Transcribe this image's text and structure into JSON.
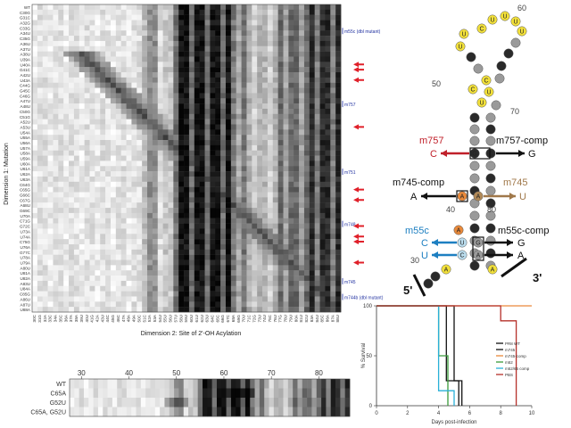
{
  "heatmap": {
    "ylabel": "Dimension 1: Mutation",
    "xlabel": "Dimension 2: Site of 2'-OH Acylation",
    "rows": [
      "WT",
      "C30G",
      "G31C",
      "A32G",
      "C33G",
      "A34U",
      "C35G",
      "A36U",
      "A37U",
      "A38U",
      "U39A",
      "U40A",
      "G41C",
      "A42U",
      "U43A",
      "C44G",
      "G45C",
      "C46G",
      "A47U",
      "A48U",
      "C50G",
      "C51G",
      "A52U",
      "A53U",
      "U54A",
      "U55A",
      "U56A",
      "U57A",
      "U58A",
      "U59A",
      "U60A",
      "U61A",
      "U62A",
      "U63A",
      "C64G",
      "C65G",
      "G66C",
      "C67G",
      "A68U",
      "G69C",
      "U70A",
      "C71G",
      "G72C",
      "U73A",
      "U74A",
      "C75G",
      "U76A",
      "G77C",
      "U78A",
      "U79A",
      "A80U",
      "U81A",
      "U82A",
      "A83U",
      "U84A",
      "C85G",
      "A86U",
      "A87U",
      "U88A"
    ],
    "columns": [
      "30C",
      "31G",
      "32A",
      "33C",
      "34A",
      "35C",
      "36A",
      "37A",
      "38A",
      "39U",
      "40U",
      "41G",
      "42A",
      "43U",
      "44C",
      "45G",
      "46C",
      "47A",
      "48A",
      "49A",
      "50C",
      "51C",
      "52A",
      "53A",
      "54U",
      "55U",
      "56U",
      "57U",
      "58U",
      "59U",
      "60U",
      "61U",
      "62U",
      "63U",
      "64C",
      "65C",
      "66G",
      "67C",
      "68A",
      "69G",
      "70U",
      "71C",
      "72G",
      "73U",
      "74U",
      "75C",
      "76U",
      "77G",
      "78U",
      "79U",
      "80A",
      "81U",
      "82U",
      "83A",
      "84U",
      "85C",
      "86A",
      "87A",
      "88U"
    ],
    "annotations": [
      {
        "label": "m55c (dbl mutant)",
        "row": 5
      },
      {
        "label": "m757",
        "row": 19
      },
      {
        "label": "m751",
        "row": 32
      },
      {
        "label": "m748",
        "row": 42
      },
      {
        "label": "m745",
        "row": 53
      },
      {
        "label": "m744b (dbl mutant)",
        "row": 56
      }
    ],
    "highlight_rows": [
      11,
      12,
      14,
      23,
      35,
      37,
      42,
      44,
      45,
      49
    ]
  },
  "strip": {
    "rows": [
      "WT",
      "C65A",
      "G52U",
      "C65A, G52U"
    ],
    "ticks": [
      "30",
      "40",
      "50",
      "60",
      "70",
      "80"
    ]
  },
  "structure": {
    "labels": {
      "n60": "60",
      "n50": "50",
      "n70": "70",
      "n40": "40",
      "n80": "80",
      "n30": "30",
      "five": "5'",
      "three": "3'"
    },
    "mutations": [
      {
        "name": "m757",
        "base": "C",
        "color": "#c0202a"
      },
      {
        "name": "m757-comp",
        "base": "G",
        "color": "#111111"
      },
      {
        "name": "m745-comp",
        "base": "A",
        "color": "#111111"
      },
      {
        "name": "m745",
        "base": "U",
        "color": "#a0784a"
      },
      {
        "name": "m55c",
        "bases": [
          "C",
          "U"
        ],
        "color": "#1d7fc1"
      },
      {
        "name": "m55c-comp",
        "bases": [
          "G",
          "A"
        ],
        "color": "#111111"
      }
    ],
    "colors": {
      "yellow": "#f2e03a",
      "gray": "#9a9a9a",
      "dark": "#2a2a2a",
      "orange": "#e9893a",
      "tan": "#b28a58",
      "blue": "#1d7fc1",
      "red": "#c0202a"
    }
  },
  "survival_chart": {
    "type": "line",
    "ylabel": "% Survival",
    "xlabel": "Days post-infection",
    "xlim": [
      0,
      10
    ],
    "ylim": [
      0,
      100
    ],
    "xticks": [
      0,
      2,
      4,
      6,
      8,
      10
    ],
    "yticks": [
      0,
      50,
      100
    ],
    "series": [
      {
        "name": "PR8 WT",
        "color": "#111111",
        "points": [
          [
            0,
            100
          ],
          [
            4.5,
            100
          ],
          [
            4.5,
            25
          ],
          [
            5.5,
            25
          ],
          [
            5.5,
            0
          ]
        ]
      },
      {
        "name": "m745",
        "color": "#111111",
        "points": [
          [
            0,
            100
          ],
          [
            5,
            100
          ],
          [
            5,
            25
          ],
          [
            5.3,
            25
          ],
          [
            5.3,
            0
          ]
        ]
      },
      {
        "name": "m745-comp",
        "color": "#e9893a",
        "points": [
          [
            0,
            100
          ],
          [
            10,
            100
          ]
        ]
      },
      {
        "name": "m52",
        "color": "#3a9a3a",
        "points": [
          [
            0,
            100
          ],
          [
            4,
            100
          ],
          [
            4,
            50
          ],
          [
            4.6,
            50
          ],
          [
            4.6,
            0
          ]
        ]
      },
      {
        "name": "m52/65 comp",
        "color": "#29b0d8",
        "points": [
          [
            0,
            100
          ],
          [
            4,
            100
          ],
          [
            4,
            15
          ],
          [
            5,
            15
          ],
          [
            5,
            0
          ]
        ]
      },
      {
        "name": "PBS",
        "color": "#b5302a",
        "points": [
          [
            0,
            100
          ],
          [
            8,
            100
          ],
          [
            8,
            85
          ],
          [
            9,
            85
          ],
          [
            9,
            0
          ]
        ]
      }
    ]
  }
}
